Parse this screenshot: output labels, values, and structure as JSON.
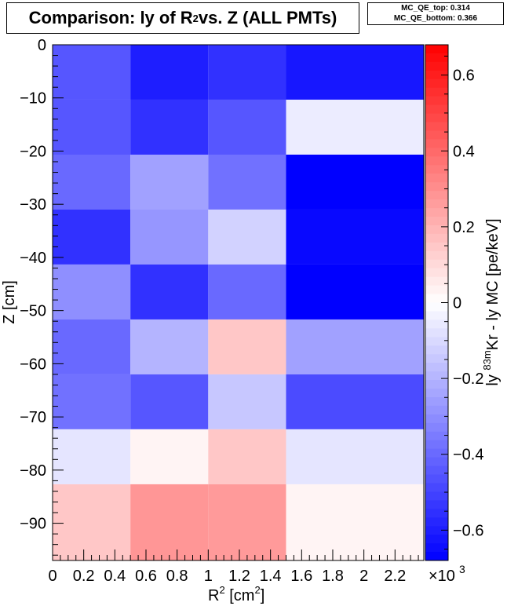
{
  "title": {
    "prefix": "Comparison: ly of R",
    "sup": "2",
    "suffix": " vs. Z (ALL PMTs)"
  },
  "stats": {
    "top": "MC_QE_top: 0.314",
    "bottom": "MC_QE_bottom: 0.366"
  },
  "chart_data": {
    "type": "heatmap",
    "x_edges": [
      0,
      0.5,
      1.0,
      1.5,
      2.0
    ],
    "x_multiplier": "×10^3",
    "y_edges": [
      0,
      -10.33,
      -20.67,
      -31.0,
      -41.33,
      -51.67,
      -62.0,
      -72.33,
      -82.67,
      -93
    ],
    "xlim": [
      0,
      2.0
    ],
    "ylim": [
      -97,
      0
    ],
    "zlim": [
      -0.68,
      0.68
    ],
    "x_ticks": [
      0,
      0.2,
      0.4,
      0.6,
      0.8,
      1,
      1.2,
      1.4,
      1.6,
      1.8,
      2,
      2.2
    ],
    "y_ticks": [
      0,
      -10,
      -20,
      -30,
      -40,
      -50,
      -60,
      -70,
      -80,
      -90
    ],
    "z_ticks": [
      0.6,
      0.4,
      0.2,
      0,
      -0.2,
      -0.4,
      -0.6
    ],
    "values": [
      [
        -0.45,
        -0.6,
        -0.55,
        -0.62
      ],
      [
        -0.45,
        -0.55,
        -0.45,
        -0.05
      ],
      [
        -0.4,
        -0.25,
        -0.38,
        -0.68
      ],
      [
        -0.55,
        -0.28,
        -0.12,
        -0.66
      ],
      [
        -0.3,
        -0.55,
        -0.4,
        -0.7
      ],
      [
        -0.4,
        -0.2,
        0.15,
        -0.25
      ],
      [
        -0.38,
        -0.45,
        -0.15,
        -0.48
      ],
      [
        -0.07,
        0.03,
        0.15,
        -0.07
      ],
      [
        0.15,
        0.28,
        0.27,
        0.03
      ]
    ],
    "xlabel": {
      "text": "R",
      "sup": "2",
      "mid": " [cm",
      "sup2": "2",
      "end": "]"
    },
    "ylabel": "Z [cm]",
    "zlabel": {
      "pre": "ly ",
      "sup": "83m",
      "post": "Kr - ly MC [pe/keV]"
    },
    "grid": false
  }
}
